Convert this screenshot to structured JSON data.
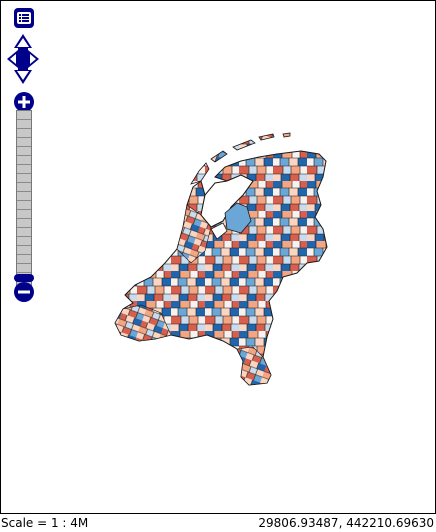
{
  "map": {
    "region": "Netherlands municipalities choropleth",
    "colors": {
      "dark_blue": "#2166ac",
      "mid_blue": "#6aa6d6",
      "light_blue": "#c7ddef",
      "neutral": "#f7f2f0",
      "light_red": "#fbd5c2",
      "mid_red": "#f4a582",
      "dark_red": "#d6604d",
      "outline": "#1a1a1a"
    }
  },
  "controls": {
    "layer_switcher_icon": "list-icon",
    "pan_icons": [
      "pan-up-icon",
      "pan-left-icon",
      "pan-right-icon",
      "pan-down-icon"
    ],
    "zoom_in_symbol": "+",
    "zoom_out_symbol": "−"
  },
  "status": {
    "scale": "Scale = 1 : 4M",
    "coordinates": "29806.93487, 442210.69630"
  }
}
